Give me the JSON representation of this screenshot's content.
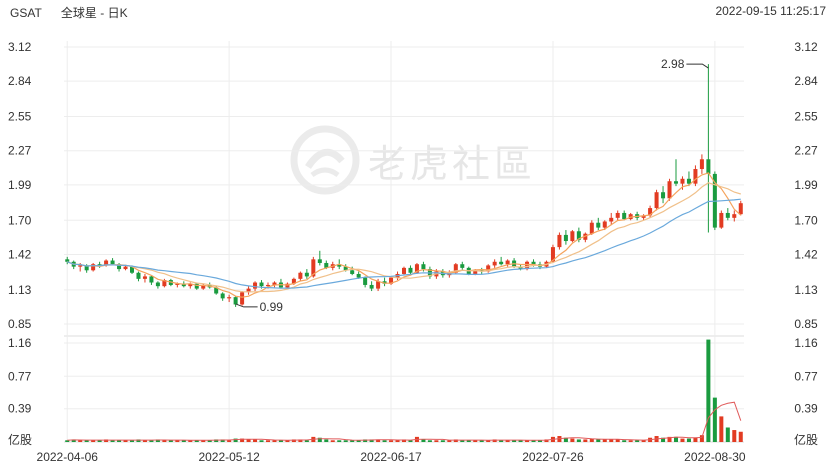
{
  "header": {
    "ticker": "GSAT",
    "name": "全球星 - 日K",
    "timestamp": "2022-09-15 11:25:17"
  },
  "watermark": {
    "text": "老虎社區"
  },
  "colors": {
    "up": "#e23b22",
    "down": "#1a9b3f",
    "ma5": "#f5a35c",
    "ma10": "#f0c08a",
    "ma20": "#6aa9dc",
    "vol_ma": "#e05a5a",
    "grid": "#ededed",
    "text": "#333333"
  },
  "chart_data": {
    "type": "candlestick",
    "price_axis": {
      "ticks": [
        0.85,
        1.13,
        1.42,
        1.7,
        1.99,
        2.27,
        2.55,
        2.84,
        3.12
      ],
      "range": [
        0.85,
        3.12
      ]
    },
    "volume_axis": {
      "ticks": [
        0.39,
        0.77,
        1.16
      ],
      "unit_label": "亿股",
      "range": [
        0,
        1.16
      ]
    },
    "x_tick_labels": [
      "2022-04-06",
      "2022-05-12",
      "2022-06-17",
      "2022-07-26",
      "2022-08-30"
    ],
    "annotations": [
      {
        "label": "2.98",
        "value": 2.98,
        "type": "high"
      },
      {
        "label": "0.99",
        "value": 0.99,
        "type": "low"
      }
    ],
    "moving_averages": [
      "MA5",
      "MA10",
      "MA20"
    ],
    "candles": [
      [
        1.38,
        1.4,
        1.34,
        1.36,
        0.02
      ],
      [
        1.36,
        1.37,
        1.3,
        1.32,
        0.03
      ],
      [
        1.32,
        1.35,
        1.28,
        1.33,
        0.02
      ],
      [
        1.33,
        1.34,
        1.27,
        1.29,
        0.02
      ],
      [
        1.29,
        1.35,
        1.28,
        1.34,
        0.02
      ],
      [
        1.34,
        1.36,
        1.31,
        1.33,
        0.02
      ],
      [
        1.33,
        1.38,
        1.32,
        1.37,
        0.03
      ],
      [
        1.37,
        1.39,
        1.33,
        1.34,
        0.02
      ],
      [
        1.34,
        1.35,
        1.28,
        1.3,
        0.02
      ],
      [
        1.3,
        1.33,
        1.29,
        1.32,
        0.02
      ],
      [
        1.32,
        1.33,
        1.26,
        1.27,
        0.02
      ],
      [
        1.27,
        1.28,
        1.2,
        1.22,
        0.03
      ],
      [
        1.22,
        1.26,
        1.19,
        1.24,
        0.02
      ],
      [
        1.24,
        1.25,
        1.17,
        1.19,
        0.02
      ],
      [
        1.19,
        1.2,
        1.14,
        1.16,
        0.03
      ],
      [
        1.16,
        1.22,
        1.15,
        1.21,
        0.02
      ],
      [
        1.21,
        1.22,
        1.16,
        1.17,
        0.02
      ],
      [
        1.17,
        1.19,
        1.15,
        1.18,
        0.02
      ],
      [
        1.18,
        1.2,
        1.15,
        1.16,
        0.02
      ],
      [
        1.16,
        1.19,
        1.14,
        1.18,
        0.02
      ],
      [
        1.18,
        1.19,
        1.13,
        1.14,
        0.02
      ],
      [
        1.14,
        1.18,
        1.13,
        1.17,
        0.02
      ],
      [
        1.17,
        1.19,
        1.14,
        1.15,
        0.02
      ],
      [
        1.15,
        1.16,
        1.09,
        1.1,
        0.03
      ],
      [
        1.1,
        1.11,
        1.04,
        1.06,
        0.03
      ],
      [
        1.06,
        1.09,
        1.03,
        1.07,
        0.02
      ],
      [
        1.07,
        1.08,
        0.99,
        1.01,
        0.04
      ],
      [
        1.01,
        1.12,
        1.0,
        1.11,
        0.04
      ],
      [
        1.11,
        1.16,
        1.09,
        1.14,
        0.03
      ],
      [
        1.14,
        1.2,
        1.12,
        1.19,
        0.03
      ],
      [
        1.19,
        1.21,
        1.14,
        1.16,
        0.02
      ],
      [
        1.16,
        1.19,
        1.14,
        1.17,
        0.02
      ],
      [
        1.17,
        1.2,
        1.15,
        1.19,
        0.02
      ],
      [
        1.19,
        1.22,
        1.14,
        1.15,
        0.02
      ],
      [
        1.15,
        1.19,
        1.14,
        1.18,
        0.02
      ],
      [
        1.18,
        1.23,
        1.17,
        1.22,
        0.03
      ],
      [
        1.22,
        1.28,
        1.2,
        1.27,
        0.03
      ],
      [
        1.27,
        1.3,
        1.22,
        1.24,
        0.02
      ],
      [
        1.24,
        1.4,
        1.23,
        1.38,
        0.06
      ],
      [
        1.38,
        1.45,
        1.33,
        1.35,
        0.05
      ],
      [
        1.35,
        1.37,
        1.3,
        1.31,
        0.03
      ],
      [
        1.31,
        1.36,
        1.29,
        1.34,
        0.02
      ],
      [
        1.34,
        1.38,
        1.3,
        1.32,
        0.02
      ],
      [
        1.32,
        1.34,
        1.28,
        1.29,
        0.02
      ],
      [
        1.29,
        1.32,
        1.25,
        1.26,
        0.02
      ],
      [
        1.26,
        1.28,
        1.22,
        1.23,
        0.02
      ],
      [
        1.23,
        1.24,
        1.15,
        1.17,
        0.03
      ],
      [
        1.17,
        1.2,
        1.12,
        1.14,
        0.03
      ],
      [
        1.14,
        1.22,
        1.12,
        1.2,
        0.03
      ],
      [
        1.2,
        1.23,
        1.16,
        1.18,
        0.02
      ],
      [
        1.18,
        1.24,
        1.17,
        1.23,
        0.02
      ],
      [
        1.23,
        1.28,
        1.21,
        1.26,
        0.02
      ],
      [
        1.26,
        1.32,
        1.25,
        1.31,
        0.03
      ],
      [
        1.31,
        1.33,
        1.26,
        1.27,
        0.02
      ],
      [
        1.27,
        1.35,
        1.26,
        1.34,
        0.06
      ],
      [
        1.34,
        1.36,
        1.28,
        1.3,
        0.03
      ],
      [
        1.3,
        1.32,
        1.22,
        1.24,
        0.02
      ],
      [
        1.24,
        1.3,
        1.22,
        1.28,
        0.02
      ],
      [
        1.28,
        1.3,
        1.23,
        1.25,
        0.02
      ],
      [
        1.25,
        1.29,
        1.23,
        1.27,
        0.02
      ],
      [
        1.27,
        1.35,
        1.26,
        1.34,
        0.03
      ],
      [
        1.34,
        1.36,
        1.29,
        1.31,
        0.02
      ],
      [
        1.31,
        1.32,
        1.25,
        1.26,
        0.02
      ],
      [
        1.26,
        1.3,
        1.25,
        1.29,
        0.02
      ],
      [
        1.29,
        1.31,
        1.26,
        1.28,
        0.02
      ],
      [
        1.28,
        1.34,
        1.27,
        1.33,
        0.02
      ],
      [
        1.33,
        1.38,
        1.31,
        1.36,
        0.03
      ],
      [
        1.36,
        1.4,
        1.33,
        1.34,
        0.02
      ],
      [
        1.34,
        1.38,
        1.32,
        1.37,
        0.02
      ],
      [
        1.37,
        1.39,
        1.31,
        1.32,
        0.02
      ],
      [
        1.32,
        1.34,
        1.29,
        1.3,
        0.02
      ],
      [
        1.3,
        1.37,
        1.29,
        1.36,
        0.02
      ],
      [
        1.36,
        1.38,
        1.32,
        1.34,
        0.02
      ],
      [
        1.34,
        1.36,
        1.3,
        1.32,
        0.02
      ],
      [
        1.32,
        1.37,
        1.31,
        1.36,
        0.03
      ],
      [
        1.36,
        1.5,
        1.35,
        1.48,
        0.06
      ],
      [
        1.48,
        1.6,
        1.46,
        1.58,
        0.07
      ],
      [
        1.58,
        1.62,
        1.5,
        1.53,
        0.05
      ],
      [
        1.53,
        1.62,
        1.52,
        1.61,
        0.04
      ],
      [
        1.61,
        1.64,
        1.52,
        1.54,
        0.03
      ],
      [
        1.54,
        1.6,
        1.52,
        1.59,
        0.03
      ],
      [
        1.59,
        1.7,
        1.58,
        1.68,
        0.04
      ],
      [
        1.68,
        1.72,
        1.62,
        1.64,
        0.03
      ],
      [
        1.64,
        1.7,
        1.62,
        1.69,
        0.03
      ],
      [
        1.69,
        1.76,
        1.66,
        1.72,
        0.03
      ],
      [
        1.72,
        1.78,
        1.7,
        1.76,
        0.03
      ],
      [
        1.76,
        1.78,
        1.7,
        1.71,
        0.02
      ],
      [
        1.71,
        1.76,
        1.7,
        1.75,
        0.02
      ],
      [
        1.75,
        1.77,
        1.7,
        1.72,
        0.02
      ],
      [
        1.72,
        1.75,
        1.7,
        1.74,
        0.02
      ],
      [
        1.74,
        1.82,
        1.72,
        1.8,
        0.05
      ],
      [
        1.8,
        1.95,
        1.78,
        1.93,
        0.07
      ],
      [
        1.93,
        1.98,
        1.84,
        1.88,
        0.05
      ],
      [
        1.88,
        2.04,
        1.86,
        2.02,
        0.06
      ],
      [
        2.02,
        2.2,
        1.98,
        2.0,
        0.06
      ],
      [
        2.0,
        2.06,
        1.95,
        2.04,
        0.04
      ],
      [
        2.04,
        2.1,
        1.98,
        2.0,
        0.04
      ],
      [
        2.0,
        2.15,
        1.98,
        2.12,
        0.05
      ],
      [
        2.12,
        2.24,
        2.08,
        2.2,
        0.08
      ],
      [
        2.2,
        2.98,
        1.6,
        2.08,
        1.2
      ],
      [
        2.08,
        2.1,
        1.62,
        1.64,
        0.52
      ],
      [
        1.64,
        1.78,
        1.63,
        1.76,
        0.3
      ],
      [
        1.76,
        1.8,
        1.7,
        1.72,
        0.17
      ],
      [
        1.72,
        1.78,
        1.69,
        1.75,
        0.14
      ],
      [
        1.75,
        1.86,
        1.74,
        1.84,
        0.12
      ]
    ]
  }
}
